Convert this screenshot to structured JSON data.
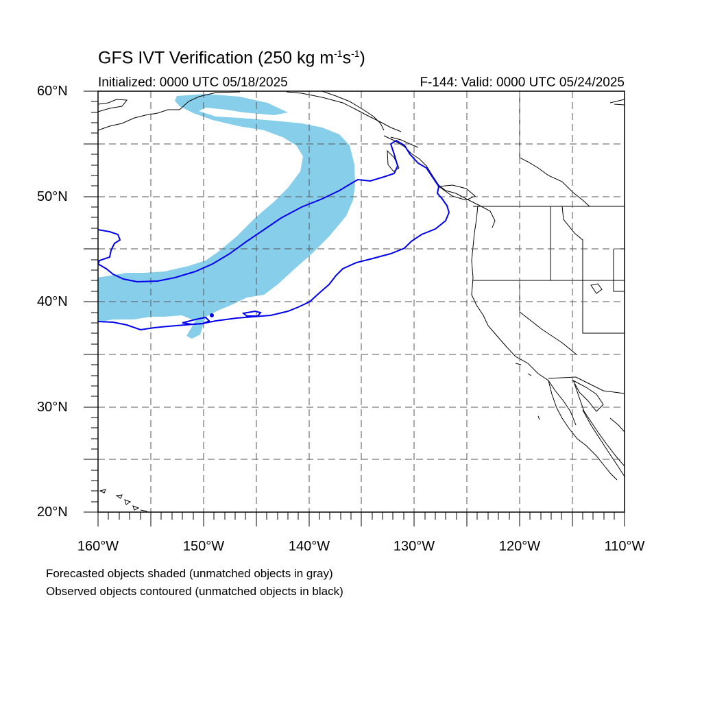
{
  "title": {
    "main": "GFS IVT Verification (250 kg m",
    "exp1": "-1",
    "mid": "s",
    "exp2": "-1",
    "end": ")"
  },
  "initialized": "Initialized: 0000 UTC 05/18/2025",
  "valid": "F-144: Valid: 0000 UTC 05/24/2025",
  "lat_labels": [
    "60°N",
    "50°N",
    "40°N",
    "30°N",
    "20°N"
  ],
  "lon_labels": [
    "160°W",
    "150°W",
    "140°W",
    "130°W",
    "120°W",
    "110°W"
  ],
  "notes": [
    "Forecasted objects shaded (unmatched objects in gray)",
    "Observed objects contoured (unmatched objects in black)"
  ],
  "colors": {
    "forecast_fill": "#87ceeb",
    "observed_contour": "#0000ee",
    "coastline": "#000000",
    "gridline": "#555555"
  },
  "map": {
    "projection": "cylindrical-equidistant",
    "lon_range": [
      -160,
      -110
    ],
    "lat_range": [
      20,
      60
    ],
    "grid_spacing_deg": 5,
    "grid_style": "dashed"
  }
}
